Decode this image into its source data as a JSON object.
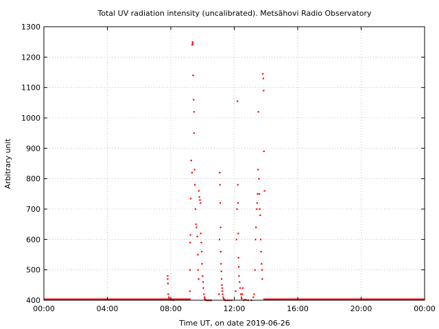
{
  "chart_data": {
    "type": "scatter",
    "title": "Total UV radiation intensity (uncalibrated). Metsähovi Radio Observatory",
    "xlabel": "Time UT, on date 2019-06-26",
    "ylabel": "Arbitrary unit",
    "xlim": [
      "00:00",
      "24:00"
    ],
    "ylim": [
      400,
      1300
    ],
    "x_ticks": [
      "00:00",
      "04:00",
      "08:00",
      "12:00",
      "16:00",
      "20:00",
      "00:00"
    ],
    "y_ticks": [
      400,
      500,
      600,
      700,
      800,
      900,
      1000,
      1100,
      1200,
      1300
    ],
    "grid": true,
    "legend": "none",
    "point_color": "#ff0000",
    "baseline": {
      "value": 400,
      "spans": [
        [
          "00:00",
          "09:15"
        ],
        [
          "13:50",
          "24:00"
        ]
      ]
    },
    "series": [
      {
        "x": [
          "07:48",
          "07:48",
          "07:49",
          "07:50",
          "07:52",
          "07:54",
          "07:58",
          "08:02",
          "08:10",
          "09:12",
          "09:12",
          "09:13",
          "09:14",
          "09:15",
          "09:17",
          "09:20",
          "09:21",
          "09:22",
          "09:22",
          "09:24",
          "09:26",
          "09:28",
          "09:28",
          "09:30",
          "09:31",
          "09:33",
          "09:35",
          "09:37",
          "09:40",
          "09:42",
          "09:43",
          "09:45",
          "09:46",
          "09:48",
          "09:50",
          "09:52",
          "09:53",
          "09:55",
          "09:57",
          "09:58",
          "10:00",
          "10:02",
          "10:03",
          "10:05",
          "10:07",
          "10:08",
          "10:10",
          "10:12",
          "10:15",
          "10:18",
          "10:22",
          "10:27",
          "10:32",
          "11:02",
          "11:04",
          "11:05",
          "11:06",
          "11:07",
          "11:08",
          "11:09",
          "11:10",
          "11:11",
          "11:12",
          "11:13",
          "11:14",
          "11:15",
          "11:16",
          "11:18",
          "11:20",
          "11:22",
          "11:24",
          "11:28",
          "11:35",
          "11:42",
          "11:50",
          "12:05",
          "12:08",
          "12:10",
          "12:12",
          "12:13",
          "12:14",
          "12:15",
          "12:16",
          "12:17",
          "12:18",
          "12:20",
          "12:22",
          "12:25",
          "12:27",
          "12:28",
          "12:30",
          "12:32",
          "12:35",
          "12:40",
          "12:45",
          "12:52",
          "13:05",
          "13:12",
          "13:15",
          "13:18",
          "13:20",
          "13:22",
          "13:25",
          "13:26",
          "13:28",
          "13:30",
          "13:31",
          "13:33",
          "13:35",
          "13:36",
          "13:38",
          "13:40",
          "13:41",
          "13:43",
          "13:45",
          "13:46",
          "13:48",
          "13:50",
          "13:51",
          "13:52",
          "13:54"
        ],
        "y": [
          480,
          470,
          455,
          420,
          410,
          405,
          402,
          401,
          400,
          430,
          500,
          590,
          615,
          735,
          860,
          820,
          1240,
          1250,
          1245,
          1140,
          1060,
          1020,
          950,
          830,
          780,
          700,
          650,
          640,
          610,
          550,
          500,
          470,
          760,
          740,
          730,
          720,
          620,
          590,
          560,
          520,
          480,
          460,
          440,
          420,
          410,
          405,
          402,
          401,
          400,
          400,
          400,
          400,
          400,
          420,
          600,
          820,
          780,
          720,
          640,
          560,
          520,
          495,
          470,
          450,
          440,
          430,
          420,
          410,
          405,
          402,
          401,
          400,
          400,
          400,
          400,
          430,
          600,
          700,
          1055,
          780,
          720,
          620,
          540,
          510,
          480,
          460,
          440,
          420,
          410,
          405,
          420,
          440,
          400,
          402,
          401,
          400,
          400,
          410,
          420,
          500,
          600,
          640,
          700,
          720,
          750,
          830,
          1020,
          800,
          750,
          700,
          680,
          600,
          560,
          520,
          500,
          470,
          1145,
          1130,
          1090,
          890,
          760
        ]
      }
    ]
  }
}
